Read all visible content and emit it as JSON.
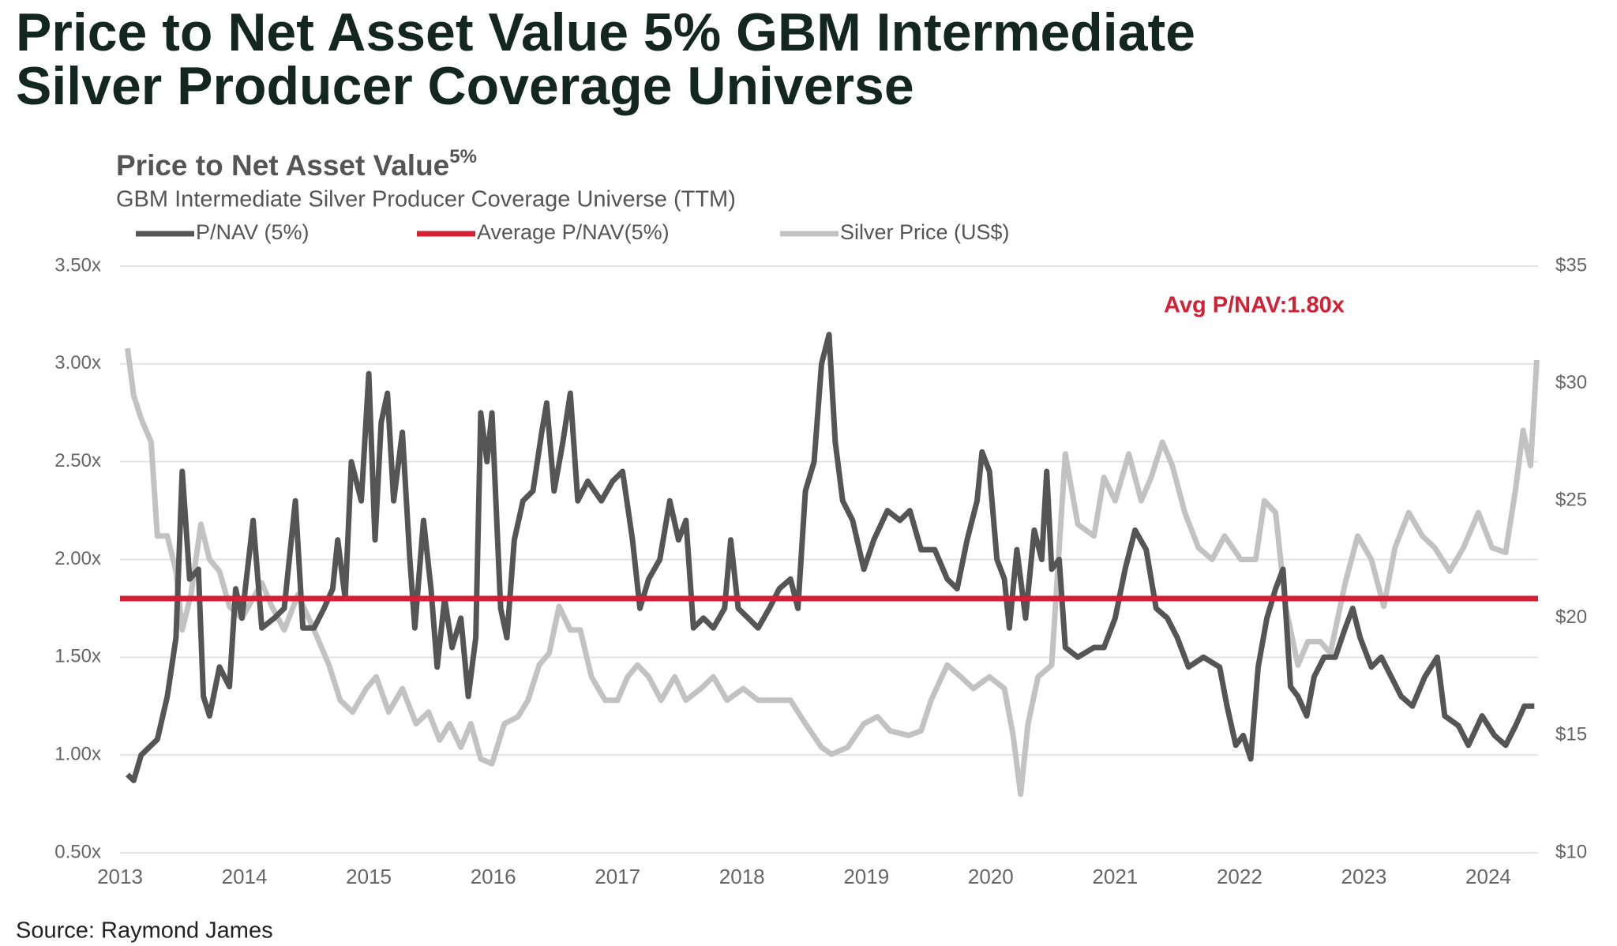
{
  "header": {
    "title_lines": [
      "Price to Net Asset Value 5% GBM Intermediate",
      "Silver Producer Coverage Universe"
    ]
  },
  "chart_data": {
    "type": "line",
    "title": "Price to Net Asset Value",
    "title_superscript": "5%",
    "subtitle": "GBM Intermediate Silver Producer Coverage Universe (TTM)",
    "xlim": [
      2013,
      2024.4
    ],
    "xticks": [
      2013,
      2014,
      2015,
      2016,
      2017,
      2018,
      2019,
      2020,
      2021,
      2022,
      2023,
      2024
    ],
    "ylim": [
      0.5,
      3.5
    ],
    "yticks": [
      {
        "value": 0.5,
        "label": "0.50x"
      },
      {
        "value": 1,
        "label": "1.00x"
      },
      {
        "value": 1.5,
        "label": "1.50x"
      },
      {
        "value": 2,
        "label": "2.00x"
      },
      {
        "value": 2.5,
        "label": "2.50x"
      },
      {
        "value": 3,
        "label": "3.00x"
      },
      {
        "value": 3.5,
        "label": "3.50x"
      }
    ],
    "y2lim": [
      10,
      35
    ],
    "y2ticks": [
      {
        "value": 10,
        "label": "$10"
      },
      {
        "value": 15,
        "label": "$15"
      },
      {
        "value": 20,
        "label": "$20"
      },
      {
        "value": 25,
        "label": "$25"
      },
      {
        "value": 30,
        "label": "$30"
      },
      {
        "value": 35,
        "label": "$35"
      }
    ],
    "grid": true,
    "series": [
      {
        "name": "P/NAV (5%)",
        "color": "#555555",
        "x": [
          2013.06,
          2013.11,
          2013.17,
          2013.3,
          2013.38,
          2013.45,
          2013.5,
          2013.56,
          2013.63,
          2013.67,
          2013.72,
          2013.8,
          2013.88,
          2013.93,
          2013.98,
          2014.07,
          2014.14,
          2014.24,
          2014.32,
          2014.41,
          2014.47,
          2014.56,
          2014.64,
          2014.71,
          2014.75,
          2014.81,
          2014.86,
          2014.94,
          2015.0,
          2015.05,
          2015.1,
          2015.15,
          2015.2,
          2015.27,
          2015.33,
          2015.37,
          2015.44,
          2015.5,
          2015.55,
          2015.61,
          2015.67,
          2015.74,
          2015.8,
          2015.86,
          2015.9,
          2015.95,
          2015.99,
          2016.06,
          2016.11,
          2016.17,
          2016.24,
          2016.32,
          2016.39,
          2016.43,
          2016.49,
          2016.56,
          2016.62,
          2016.68,
          2016.76,
          2016.87,
          2016.96,
          2017.04,
          2017.12,
          2017.18,
          2017.25,
          2017.34,
          2017.42,
          2017.49,
          2017.55,
          2017.61,
          2017.69,
          2017.77,
          2017.86,
          2017.91,
          2017.97,
          2018.05,
          2018.13,
          2018.22,
          2018.3,
          2018.39,
          2018.45,
          2018.51,
          2018.58,
          2018.64,
          2018.7,
          2018.75,
          2018.81,
          2018.89,
          2018.98,
          2019.06,
          2019.17,
          2019.27,
          2019.35,
          2019.44,
          2019.55,
          2019.65,
          2019.73,
          2019.81,
          2019.89,
          2019.93,
          2019.99,
          2020.05,
          2020.11,
          2020.15,
          2020.21,
          2020.28,
          2020.35,
          2020.41,
          2020.45,
          2020.49,
          2020.55,
          2020.6,
          2020.7,
          2020.83,
          2020.91,
          2021.0,
          2021.08,
          2021.16,
          2021.25,
          2021.33,
          2021.42,
          2021.5,
          2021.59,
          2021.71,
          2021.84,
          2021.9,
          2021.97,
          2022.03,
          2022.09,
          2022.15,
          2022.22,
          2022.29,
          2022.35,
          2022.41,
          2022.47,
          2022.54,
          2022.6,
          2022.68,
          2022.77,
          2022.85,
          2022.91,
          2022.97,
          2023.06,
          2023.14,
          2023.22,
          2023.3,
          2023.39,
          2023.49,
          2023.59,
          2023.65,
          2023.76,
          2023.84,
          2023.95,
          2024.05,
          2024.14,
          2024.22,
          2024.29,
          2024.37
        ],
        "values": [
          0.9,
          0.87,
          1.0,
          1.08,
          1.3,
          1.6,
          2.45,
          1.9,
          1.95,
          1.3,
          1.2,
          1.45,
          1.35,
          1.85,
          1.7,
          2.2,
          1.65,
          1.7,
          1.75,
          2.3,
          1.65,
          1.65,
          1.75,
          1.85,
          2.1,
          1.8,
          2.5,
          2.3,
          2.95,
          2.1,
          2.7,
          2.85,
          2.3,
          2.65,
          2.0,
          1.65,
          2.2,
          1.85,
          1.45,
          1.8,
          1.55,
          1.7,
          1.3,
          1.6,
          2.75,
          2.5,
          2.75,
          1.75,
          1.6,
          2.1,
          2.3,
          2.35,
          2.65,
          2.8,
          2.35,
          2.6,
          2.85,
          2.3,
          2.4,
          2.3,
          2.4,
          2.45,
          2.1,
          1.75,
          1.9,
          2.0,
          2.3,
          2.1,
          2.2,
          1.65,
          1.7,
          1.65,
          1.75,
          2.1,
          1.75,
          1.7,
          1.65,
          1.75,
          1.85,
          1.9,
          1.75,
          2.35,
          2.5,
          3.0,
          3.15,
          2.6,
          2.3,
          2.2,
          1.95,
          2.1,
          2.25,
          2.2,
          2.25,
          2.05,
          2.05,
          1.9,
          1.85,
          2.1,
          2.3,
          2.55,
          2.45,
          2.0,
          1.9,
          1.65,
          2.05,
          1.7,
          2.15,
          2.0,
          2.45,
          1.95,
          2.0,
          1.55,
          1.5,
          1.55,
          1.55,
          1.7,
          1.95,
          2.15,
          2.05,
          1.75,
          1.7,
          1.6,
          1.45,
          1.5,
          1.45,
          1.25,
          1.05,
          1.1,
          0.98,
          1.45,
          1.7,
          1.85,
          1.95,
          1.35,
          1.3,
          1.2,
          1.4,
          1.5,
          1.5,
          1.65,
          1.75,
          1.6,
          1.45,
          1.5,
          1.4,
          1.3,
          1.25,
          1.4,
          1.5,
          1.2,
          1.15,
          1.05,
          1.2,
          1.1,
          1.05,
          1.15,
          1.25,
          1.25
        ]
      },
      {
        "name": "Silver Price (US$)",
        "color": "#c2c2c2",
        "axis": "y2",
        "x": [
          2013.06,
          2013.11,
          2013.17,
          2013.25,
          2013.3,
          2013.38,
          2013.45,
          2013.5,
          2013.57,
          2013.65,
          2013.72,
          2013.8,
          2013.88,
          2013.98,
          2014.14,
          2014.22,
          2014.32,
          2014.43,
          2014.56,
          2014.68,
          2014.77,
          2014.87,
          2014.98,
          2015.06,
          2015.16,
          2015.27,
          2015.38,
          2015.48,
          2015.57,
          2015.65,
          2015.74,
          2015.82,
          2015.9,
          2015.99,
          2016.09,
          2016.2,
          2016.28,
          2016.37,
          2016.45,
          2016.53,
          2016.62,
          2016.7,
          2016.79,
          2016.9,
          2017.0,
          2017.08,
          2017.16,
          2017.25,
          2017.35,
          2017.46,
          2017.55,
          2017.67,
          2017.77,
          2017.88,
          2018.01,
          2018.13,
          2018.26,
          2018.39,
          2018.51,
          2018.64,
          2018.72,
          2018.85,
          2018.98,
          2019.09,
          2019.19,
          2019.34,
          2019.44,
          2019.52,
          2019.65,
          2019.76,
          2019.86,
          2019.99,
          2020.11,
          2020.18,
          2020.24,
          2020.3,
          2020.38,
          2020.49,
          2020.55,
          2020.6,
          2020.7,
          2020.83,
          2020.91,
          2021.0,
          2021.11,
          2021.21,
          2021.29,
          2021.38,
          2021.46,
          2021.56,
          2021.67,
          2021.78,
          2021.88,
          2022.01,
          2022.13,
          2022.2,
          2022.29,
          2022.37,
          2022.47,
          2022.55,
          2022.65,
          2022.73,
          2022.85,
          2022.95,
          2023.06,
          2023.16,
          2023.25,
          2023.36,
          2023.47,
          2023.57,
          2023.69,
          2023.8,
          2023.92,
          2024.03,
          2024.14,
          2024.22,
          2024.28,
          2024.34,
          2024.39
        ],
        "values": [
          31.5,
          29.5,
          28.5,
          27.5,
          23.5,
          23.5,
          22,
          19.5,
          21,
          24,
          22.5,
          22,
          20.5,
          20,
          21.5,
          20.5,
          19.5,
          21,
          19.5,
          18,
          16.5,
          16,
          17,
          17.5,
          16,
          17,
          15.5,
          16,
          14.8,
          15.5,
          14.5,
          15.5,
          14,
          13.8,
          15.5,
          15.8,
          16.5,
          18,
          18.5,
          20.5,
          19.5,
          19.5,
          17.5,
          16.5,
          16.5,
          17.5,
          18,
          17.5,
          16.5,
          17.5,
          16.5,
          17,
          17.5,
          16.5,
          17,
          16.5,
          16.5,
          16.5,
          15.5,
          14.5,
          14.2,
          14.5,
          15.5,
          15.8,
          15.2,
          15,
          15.2,
          16.5,
          18,
          17.5,
          17,
          17.5,
          17,
          15,
          12.5,
          15.5,
          17.5,
          18,
          23,
          27,
          24,
          23.5,
          26,
          25,
          27,
          25,
          26,
          27.5,
          26.5,
          24.5,
          23,
          22.5,
          23.5,
          22.5,
          22.5,
          25,
          24.5,
          20.5,
          18,
          19,
          19,
          18.5,
          21.5,
          23.5,
          22.5,
          20.5,
          23,
          24.5,
          23.5,
          23,
          22,
          23,
          24.5,
          23,
          22.8,
          25.5,
          28,
          26.5,
          31
        ]
      }
    ],
    "average": {
      "name": "Average P/NAV(5%)",
      "color": "#d41f35",
      "value": 1.8
    },
    "annotation": "Avg P/NAV:1.80x",
    "source": "Source: Raymond James"
  }
}
